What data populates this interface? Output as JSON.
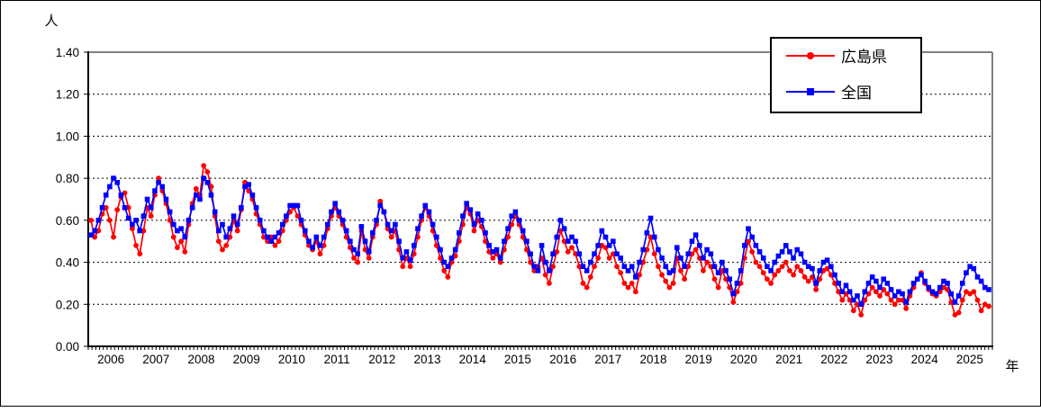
{
  "figure": {
    "y_axis_unit": "人",
    "x_axis_unit": "年"
  },
  "legend": {
    "items": [
      {
        "label": "広島県",
        "color": "#ff0000",
        "marker": "circle"
      },
      {
        "label": "全国",
        "color": "#0000ff",
        "marker": "square"
      }
    ]
  },
  "chart_data": {
    "type": "line",
    "title": "",
    "ylabel": "人",
    "xlabel": "年",
    "frequency": "monthly",
    "x_start_year": 2006,
    "x_end_year": 2025,
    "ylim": [
      0.0,
      1.4
    ],
    "ytick_labels": [
      "0.00",
      "0.20",
      "0.40",
      "0.60",
      "0.80",
      "1.00",
      "1.20",
      "1.40"
    ],
    "xtick_labels": [
      "2006",
      "2007",
      "2008",
      "2009",
      "2010",
      "2011",
      "2012",
      "2013",
      "2014",
      "2015",
      "2016",
      "2017",
      "2018",
      "2019",
      "2020",
      "2021",
      "2022",
      "2023",
      "2024",
      "2025"
    ],
    "grid": "horizontal-dashed",
    "legend_position": "top-right-inside",
    "series": [
      {
        "name": "広島県",
        "color": "#ff0000",
        "marker": "circle",
        "values": [
          0.6,
          0.52,
          0.55,
          0.63,
          0.66,
          0.6,
          0.52,
          0.65,
          0.71,
          0.73,
          0.66,
          0.56,
          0.48,
          0.44,
          0.55,
          0.66,
          0.62,
          0.72,
          0.8,
          0.74,
          0.68,
          0.6,
          0.52,
          0.47,
          0.5,
          0.45,
          0.58,
          0.68,
          0.75,
          0.72,
          0.86,
          0.83,
          0.76,
          0.62,
          0.5,
          0.46,
          0.48,
          0.52,
          0.6,
          0.55,
          0.65,
          0.78,
          0.74,
          0.7,
          0.63,
          0.58,
          0.52,
          0.5,
          0.52,
          0.48,
          0.5,
          0.55,
          0.6,
          0.64,
          0.66,
          0.62,
          0.58,
          0.53,
          0.48,
          0.46,
          0.5,
          0.44,
          0.48,
          0.56,
          0.62,
          0.66,
          0.62,
          0.58,
          0.52,
          0.47,
          0.42,
          0.4,
          0.55,
          0.46,
          0.42,
          0.52,
          0.58,
          0.69,
          0.64,
          0.56,
          0.52,
          0.55,
          0.46,
          0.38,
          0.42,
          0.38,
          0.44,
          0.52,
          0.6,
          0.66,
          0.62,
          0.55,
          0.48,
          0.42,
          0.36,
          0.33,
          0.4,
          0.43,
          0.5,
          0.58,
          0.66,
          0.63,
          0.55,
          0.6,
          0.57,
          0.5,
          0.45,
          0.42,
          0.44,
          0.4,
          0.46,
          0.52,
          0.58,
          0.62,
          0.58,
          0.52,
          0.46,
          0.4,
          0.36,
          0.38,
          0.42,
          0.34,
          0.3,
          0.38,
          0.45,
          0.55,
          0.5,
          0.45,
          0.47,
          0.44,
          0.38,
          0.3,
          0.28,
          0.33,
          0.38,
          0.42,
          0.48,
          0.47,
          0.42,
          0.44,
          0.38,
          0.35,
          0.3,
          0.28,
          0.3,
          0.26,
          0.34,
          0.4,
          0.46,
          0.52,
          0.44,
          0.38,
          0.34,
          0.31,
          0.28,
          0.3,
          0.42,
          0.36,
          0.32,
          0.38,
          0.44,
          0.46,
          0.42,
          0.36,
          0.4,
          0.38,
          0.32,
          0.28,
          0.36,
          0.32,
          0.28,
          0.21,
          0.26,
          0.3,
          0.42,
          0.5,
          0.45,
          0.4,
          0.38,
          0.35,
          0.32,
          0.3,
          0.34,
          0.36,
          0.38,
          0.4,
          0.36,
          0.34,
          0.38,
          0.36,
          0.33,
          0.31,
          0.33,
          0.27,
          0.32,
          0.36,
          0.37,
          0.34,
          0.3,
          0.26,
          0.22,
          0.25,
          0.22,
          0.17,
          0.2,
          0.15,
          0.22,
          0.25,
          0.28,
          0.26,
          0.24,
          0.27,
          0.25,
          0.22,
          0.2,
          0.22,
          0.22,
          0.18,
          0.24,
          0.28,
          0.32,
          0.35,
          0.3,
          0.27,
          0.25,
          0.24,
          0.26,
          0.28,
          0.27,
          0.21,
          0.15,
          0.16,
          0.22,
          0.26,
          0.25,
          0.26,
          0.22,
          0.17,
          0.2,
          0.19
        ]
      },
      {
        "name": "全国",
        "color": "#0000ff",
        "marker": "square",
        "values": [
          0.53,
          0.55,
          0.6,
          0.66,
          0.72,
          0.76,
          0.8,
          0.78,
          0.72,
          0.66,
          0.61,
          0.58,
          0.6,
          0.55,
          0.62,
          0.7,
          0.66,
          0.74,
          0.78,
          0.76,
          0.7,
          0.64,
          0.58,
          0.55,
          0.56,
          0.52,
          0.6,
          0.66,
          0.72,
          0.7,
          0.8,
          0.78,
          0.72,
          0.64,
          0.55,
          0.58,
          0.52,
          0.56,
          0.62,
          0.58,
          0.66,
          0.76,
          0.77,
          0.72,
          0.66,
          0.6,
          0.55,
          0.52,
          0.5,
          0.52,
          0.54,
          0.58,
          0.62,
          0.67,
          0.67,
          0.67,
          0.6,
          0.55,
          0.5,
          0.47,
          0.52,
          0.48,
          0.52,
          0.58,
          0.64,
          0.68,
          0.64,
          0.6,
          0.55,
          0.5,
          0.46,
          0.44,
          0.57,
          0.5,
          0.45,
          0.54,
          0.6,
          0.67,
          0.64,
          0.58,
          0.55,
          0.58,
          0.5,
          0.42,
          0.45,
          0.41,
          0.48,
          0.56,
          0.62,
          0.67,
          0.64,
          0.58,
          0.52,
          0.46,
          0.4,
          0.38,
          0.42,
          0.46,
          0.54,
          0.62,
          0.68,
          0.65,
          0.58,
          0.63,
          0.6,
          0.54,
          0.48,
          0.45,
          0.46,
          0.42,
          0.5,
          0.56,
          0.62,
          0.64,
          0.6,
          0.55,
          0.5,
          0.44,
          0.38,
          0.36,
          0.48,
          0.4,
          0.36,
          0.44,
          0.52,
          0.6,
          0.56,
          0.5,
          0.52,
          0.5,
          0.44,
          0.38,
          0.36,
          0.4,
          0.44,
          0.48,
          0.55,
          0.52,
          0.48,
          0.5,
          0.44,
          0.42,
          0.38,
          0.36,
          0.38,
          0.33,
          0.4,
          0.46,
          0.54,
          0.61,
          0.52,
          0.46,
          0.42,
          0.38,
          0.35,
          0.36,
          0.47,
          0.42,
          0.38,
          0.44,
          0.5,
          0.53,
          0.48,
          0.42,
          0.46,
          0.44,
          0.38,
          0.35,
          0.4,
          0.36,
          0.32,
          0.25,
          0.3,
          0.36,
          0.48,
          0.56,
          0.52,
          0.48,
          0.45,
          0.42,
          0.38,
          0.36,
          0.4,
          0.43,
          0.45,
          0.48,
          0.45,
          0.42,
          0.46,
          0.44,
          0.4,
          0.38,
          0.37,
          0.3,
          0.36,
          0.4,
          0.41,
          0.38,
          0.34,
          0.3,
          0.26,
          0.29,
          0.26,
          0.22,
          0.24,
          0.2,
          0.26,
          0.3,
          0.33,
          0.31,
          0.28,
          0.32,
          0.3,
          0.27,
          0.24,
          0.26,
          0.25,
          0.21,
          0.26,
          0.3,
          0.32,
          0.34,
          0.31,
          0.28,
          0.26,
          0.25,
          0.28,
          0.31,
          0.3,
          0.25,
          0.21,
          0.24,
          0.3,
          0.35,
          0.38,
          0.37,
          0.33,
          0.31,
          0.28,
          0.27
        ]
      }
    ]
  }
}
